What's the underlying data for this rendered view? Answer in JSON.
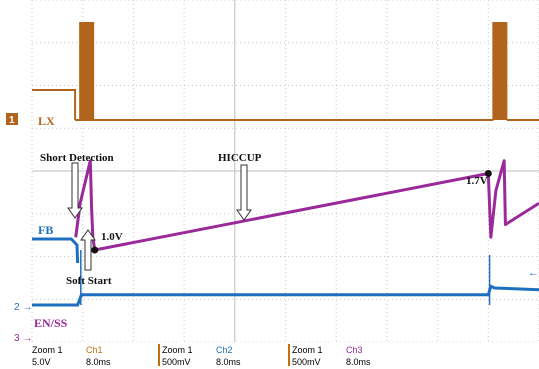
{
  "chart_data": {
    "type": "line",
    "x_unit": "ms",
    "x_range": [
      0,
      80
    ],
    "series": [
      {
        "name": "LX",
        "label": "LX",
        "marker": "1",
        "color": "#b0641c",
        "scale": "5.0V",
        "timebase": "8.0ms",
        "bursts": [
          [
            7.6,
            9.7
          ],
          [
            72.8,
            74.9
          ]
        ],
        "pre_short_high": [
          0,
          6.8
        ]
      },
      {
        "name": "FB",
        "label": "FB",
        "color": "#1f6fc0",
        "scale": "500mV",
        "timebase": "8.0ms",
        "points": [
          [
            0,
            0.0
          ],
          [
            6.2,
            0.0
          ],
          [
            7.1,
            -0.15
          ],
          [
            7.2,
            -0.6
          ]
        ]
      },
      {
        "name": "HICCUP",
        "color": "#9a2a9a",
        "scale": "500mV",
        "timebase": "8.0ms",
        "points": [
          [
            6.9,
            -0.45
          ],
          [
            7.6,
            -0.05
          ],
          [
            9.2,
            0.45
          ],
          [
            9.4,
            -0.1
          ],
          [
            9.6,
            -0.45
          ],
          [
            9.9,
            -0.6
          ],
          [
            72.0,
            0.3
          ],
          [
            72.4,
            -0.45
          ],
          [
            73.2,
            0.1
          ],
          [
            74.5,
            0.45
          ],
          [
            74.7,
            -0.3
          ],
          [
            80,
            -0.05
          ]
        ]
      },
      {
        "name": "EN/SS",
        "label": "EN/SS",
        "marker": "2",
        "color": "#1f6fc0",
        "points": [
          [
            0,
            0
          ],
          [
            7.2,
            0
          ],
          [
            7.8,
            0.3
          ],
          [
            9.8,
            0.3
          ],
          [
            10.2,
            0.3
          ],
          [
            72.0,
            0.3
          ],
          [
            72.4,
            0.55
          ],
          [
            73.0,
            0.5
          ],
          [
            80,
            0.45
          ]
        ]
      }
    ],
    "annotations": [
      {
        "text": "Short Detection"
      },
      {
        "text": "HICCUP"
      },
      {
        "text": "Soft Start"
      },
      {
        "text": "1.0V",
        "x": 9.9,
        "y": 1.0
      },
      {
        "text": "1.7V",
        "x": 71.4,
        "y": 1.7
      }
    ],
    "channel_markers": [
      "1",
      "2",
      "3"
    ],
    "grid": true,
    "grid_divisions": {
      "x": 10,
      "y": 8
    }
  },
  "status_bar": [
    {
      "line1": "Zoom 1",
      "line2": "5.0V",
      "ch_label": "Ch1",
      "ch_time": "8.0ms",
      "color": "#c07010"
    },
    {
      "line1": "Zoom 1",
      "line2": "500mV",
      "ch_label": "Ch2",
      "ch_time": "8.0ms",
      "color": "#1f6fc0"
    },
    {
      "line1": "Zoom 1",
      "line2": "500mV",
      "ch_label": "Ch3",
      "ch_time": "8.0ms",
      "color": "#9a2a9a"
    }
  ],
  "colors": {
    "grid": "#c9c9c9",
    "lx": "#b0641c",
    "fb": "#1f6fc0",
    "hiccup": "#9a2a9a",
    "text": "#222222"
  }
}
